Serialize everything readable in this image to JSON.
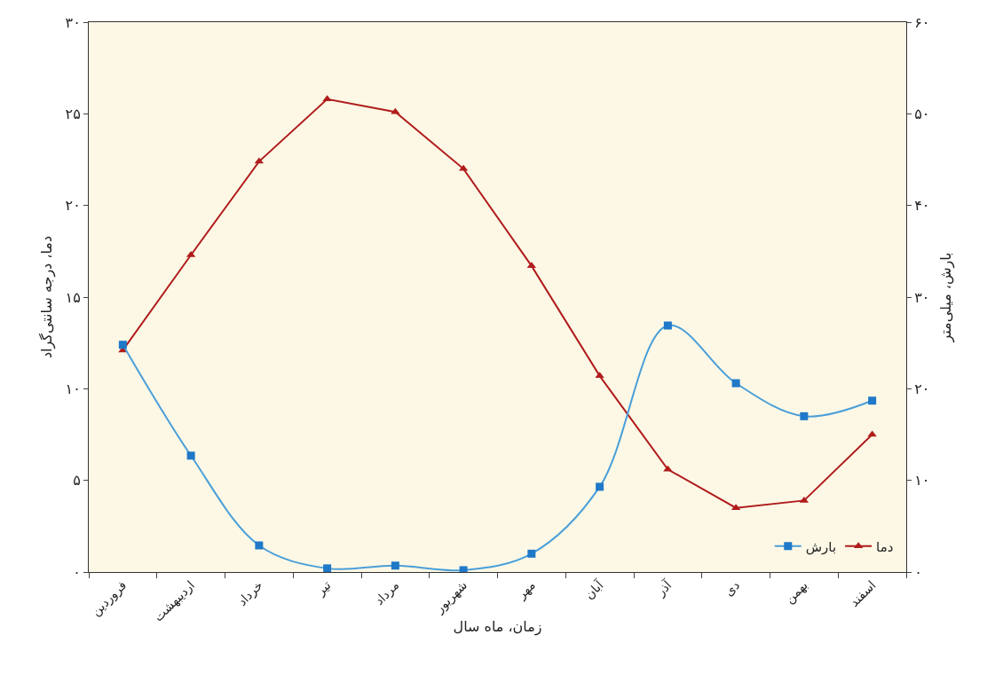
{
  "chart_data": {
    "type": "line",
    "xlabel": "زمان، ماه سال",
    "ylabel": "دما، درجه سانتی‌گراد",
    "y2label": "بارش، میلی‌متر",
    "categories": [
      "فروردین",
      "اردیبهشت",
      "خرداد",
      "تیر",
      "مرداد",
      "شهریور",
      "مهر",
      "آبان",
      "آذر",
      "دی",
      "بهمن",
      "اسفند"
    ],
    "series": [
      {
        "name": "بارش",
        "color": "#4a9fd8",
        "axis": "y2",
        "marker": "square",
        "values": [
          24.8,
          12.7,
          2.9,
          0.4,
          0.7,
          0.2,
          2.0,
          9.3,
          26.9,
          20.6,
          17.0,
          18.7
        ]
      },
      {
        "name": "دما",
        "color": "#b01c1c",
        "marker": "triangle",
        "values": [
          12.1,
          17.3,
          22.4,
          25.8,
          25.1,
          22.0,
          16.7,
          10.7,
          5.6,
          3.5,
          3.9,
          7.5
        ]
      }
    ],
    "ylim": [
      0,
      30
    ],
    "yticks": [
      {
        "value": 0,
        "label": "۰"
      },
      {
        "value": 5,
        "label": "۵"
      },
      {
        "value": 10,
        "label": "۱۰"
      },
      {
        "value": 15,
        "label": "۱۵"
      },
      {
        "value": 20,
        "label": "۲۰"
      },
      {
        "value": 25,
        "label": "۲۵"
      },
      {
        "value": 30,
        "label": "۳۰"
      }
    ],
    "y2lim": [
      0,
      60
    ],
    "y2ticks": [
      {
        "value": 0,
        "label": "۰"
      },
      {
        "value": 10,
        "label": "۱۰"
      },
      {
        "value": 20,
        "label": "۲۰"
      },
      {
        "value": 30,
        "label": "۳۰"
      },
      {
        "value": 40,
        "label": "۴۰"
      },
      {
        "value": 50,
        "label": "۵۰"
      },
      {
        "value": 60,
        "label": "۶۰"
      }
    ],
    "grid": false,
    "legend": "bottom right"
  }
}
